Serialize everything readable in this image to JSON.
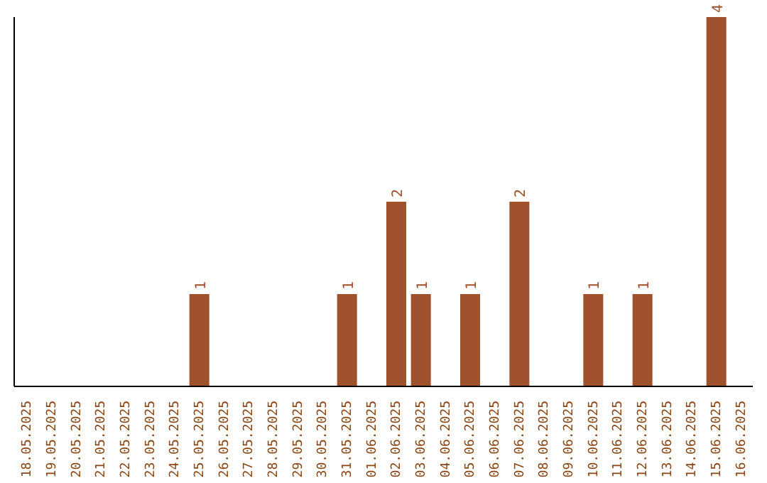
{
  "chart_data": {
    "type": "bar",
    "categories": [
      "18.05.2025",
      "19.05.2025",
      "20.05.2025",
      "21.05.2025",
      "22.05.2025",
      "23.05.2025",
      "24.05.2025",
      "25.05.2025",
      "26.05.2025",
      "27.05.2025",
      "28.05.2025",
      "29.05.2025",
      "30.05.2025",
      "31.05.2025",
      "01.06.2025",
      "02.06.2025",
      "03.06.2025",
      "04.06.2025",
      "05.06.2025",
      "06.06.2025",
      "07.06.2025",
      "08.06.2025",
      "09.06.2025",
      "10.06.2025",
      "11.06.2025",
      "12.06.2025",
      "13.06.2025",
      "14.06.2025",
      "15.06.2025",
      "16.06.2025"
    ],
    "values": [
      0,
      0,
      0,
      0,
      0,
      0,
      0,
      1,
      0,
      0,
      0,
      0,
      0,
      1,
      0,
      2,
      1,
      0,
      1,
      0,
      2,
      0,
      0,
      1,
      0,
      1,
      0,
      0,
      4,
      0
    ],
    "value_labels": [
      null,
      null,
      null,
      null,
      null,
      null,
      null,
      "1",
      null,
      null,
      null,
      null,
      null,
      "1",
      null,
      "2",
      "1",
      null,
      "1",
      null,
      "2",
      null,
      null,
      "1",
      null,
      "1",
      null,
      null,
      "4",
      null
    ],
    "color": "#a0522d"
  }
}
